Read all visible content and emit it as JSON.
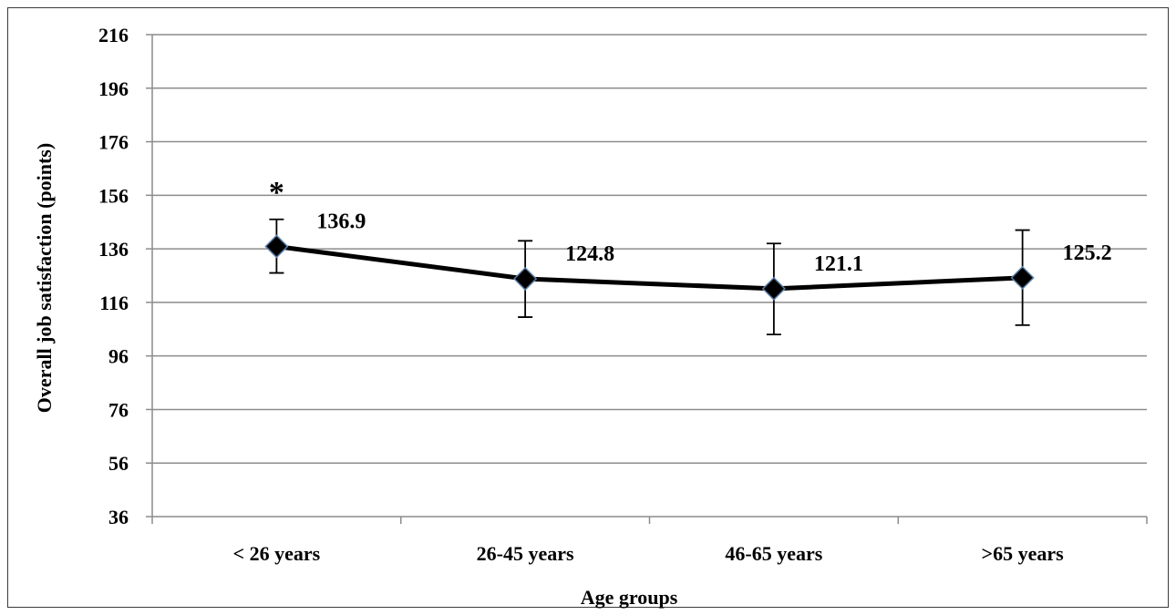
{
  "chart_data": {
    "type": "line",
    "title": "",
    "xlabel": "Age groups",
    "ylabel": "Overall job satisfaction (points)",
    "categories": [
      "< 26 years",
      "26-45 years",
      "46-65 years",
      ">65 years"
    ],
    "ylim": [
      36,
      216
    ],
    "yticks": [
      36,
      56,
      76,
      96,
      116,
      136,
      156,
      176,
      196,
      216
    ],
    "grid": true,
    "legend": "none",
    "series": [
      {
        "values": [
          136.9,
          124.8,
          121.1,
          125.2
        ],
        "error_low": [
          127.0,
          110.5,
          104.0,
          107.5
        ],
        "error_high": [
          147.0,
          139.0,
          138.0,
          143.0
        ],
        "labels": [
          "136.9",
          "124.8",
          "121.1",
          "125.2"
        ],
        "marker": "diamond",
        "color": "#000000"
      }
    ],
    "annotations": [
      {
        "category_index": 0,
        "text": "*"
      }
    ]
  }
}
